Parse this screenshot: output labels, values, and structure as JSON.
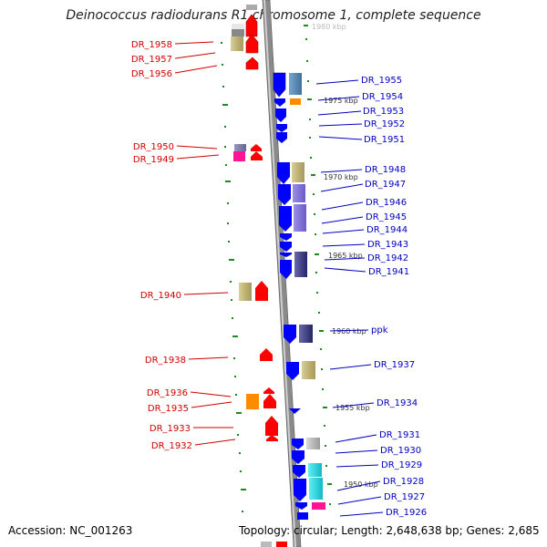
{
  "title": "Deinococcus radiodurans R1 chromosome 1, complete sequence",
  "accession": "Accession: NC_001263",
  "topology": "Topology: circular; Length: 2,648,638 bp; Genes: 2,685",
  "colors": {
    "reverse_label": "#d00000",
    "forward_label": "#0000c0",
    "reverse_arrow": "#ff0000",
    "forward_arrow": "#0000ff",
    "backbone": "#888888",
    "tick": "#228822"
  },
  "scale_marks": [
    {
      "label": "1980 kbp"
    },
    {
      "label": "1975 kbp"
    },
    {
      "label": "1970 kbp"
    },
    {
      "label": "1965 kbp"
    },
    {
      "label": "1960 kbp"
    },
    {
      "label": "1955 kbp"
    },
    {
      "label": "1950 kbp"
    }
  ],
  "reverse_genes": [
    {
      "name": "DR_1958"
    },
    {
      "name": "DR_1957"
    },
    {
      "name": "DR_1956"
    },
    {
      "name": "DR_1950"
    },
    {
      "name": "DR_1949"
    },
    {
      "name": "DR_1940"
    },
    {
      "name": "DR_1938"
    },
    {
      "name": "DR_1936"
    },
    {
      "name": "DR_1935"
    },
    {
      "name": "DR_1933"
    },
    {
      "name": "DR_1932"
    }
  ],
  "forward_genes": [
    {
      "name": "DR_1955"
    },
    {
      "name": "DR_1954"
    },
    {
      "name": "DR_1953"
    },
    {
      "name": "DR_1952"
    },
    {
      "name": "DR_1951"
    },
    {
      "name": "DR_1948"
    },
    {
      "name": "DR_1947"
    },
    {
      "name": "DR_1946"
    },
    {
      "name": "DR_1945"
    },
    {
      "name": "DR_1944"
    },
    {
      "name": "DR_1943"
    },
    {
      "name": "DR_1942"
    },
    {
      "name": "DR_1941"
    },
    {
      "name": "ppk"
    },
    {
      "name": "DR_1937"
    },
    {
      "name": "DR_1934"
    },
    {
      "name": "DR_1931"
    },
    {
      "name": "DR_1930"
    },
    {
      "name": "DR_1929"
    },
    {
      "name": "DR_1928"
    },
    {
      "name": "DR_1927"
    },
    {
      "name": "DR_1926"
    }
  ]
}
